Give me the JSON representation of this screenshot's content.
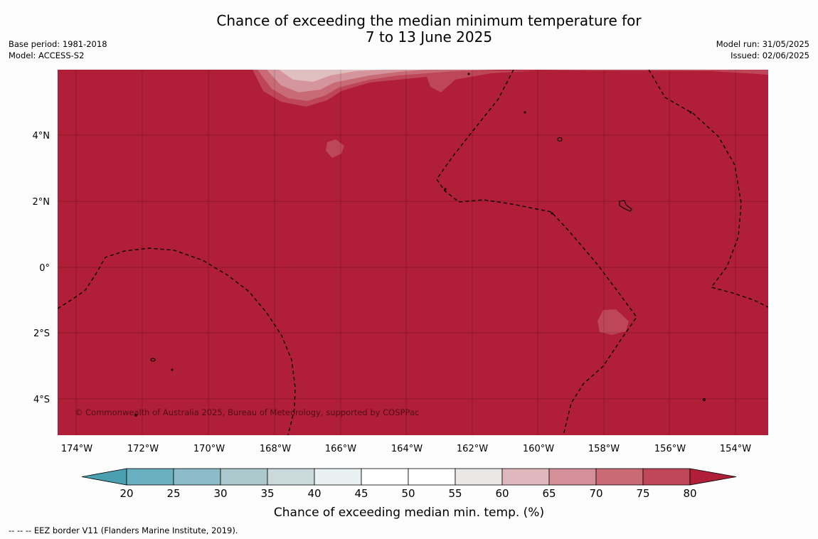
{
  "title_line1": "Chance of exceeding the median minimum temperature for",
  "title_line2": "7 to 13 June 2025",
  "base_period": "Base period: 1981-2018",
  "model": "Model: ACCESS-S2",
  "model_run": "Model run: 31/05/2025",
  "issued": "Issued: 02/06/2025",
  "copyright": "© Commonwealth of Australia 2025, Bureau of Meteorology, supported by COSPPac",
  "lat_labels": [
    "4°N",
    "2°N",
    "0°",
    "2°S",
    "4°S"
  ],
  "lon_labels": [
    "174°W",
    "172°W",
    "170°W",
    "168°W",
    "166°W",
    "164°W",
    "162°W",
    "160°W",
    "158°W",
    "156°W",
    "154°W"
  ],
  "colorbar": {
    "title": "Chance of exceeding median min. temp. (%)",
    "ticks": [
      "20",
      "25",
      "30",
      "35",
      "40",
      "45",
      "50",
      "55",
      "60",
      "65",
      "70",
      "75",
      "80"
    ],
    "colors": [
      "#4a9fb0",
      "#6aafbf",
      "#8bbcc7",
      "#abc8cd",
      "#cad9dc",
      "#e8f0f1",
      "#ffffff",
      "#ffffff",
      "#eae7e7",
      "#e0b7bd",
      "#d48f99",
      "#c96a75",
      "#bf4757",
      "#b01e37"
    ]
  },
  "footer": "--  --  -- EEZ border V11 (Flanders Marine Institute, 2019).",
  "colors": {
    "field": "#b01e37",
    "c75": "#bd4757",
    "c70": "#c96b76",
    "c65": "#d4959c",
    "c60": "#e0bfc0"
  }
}
